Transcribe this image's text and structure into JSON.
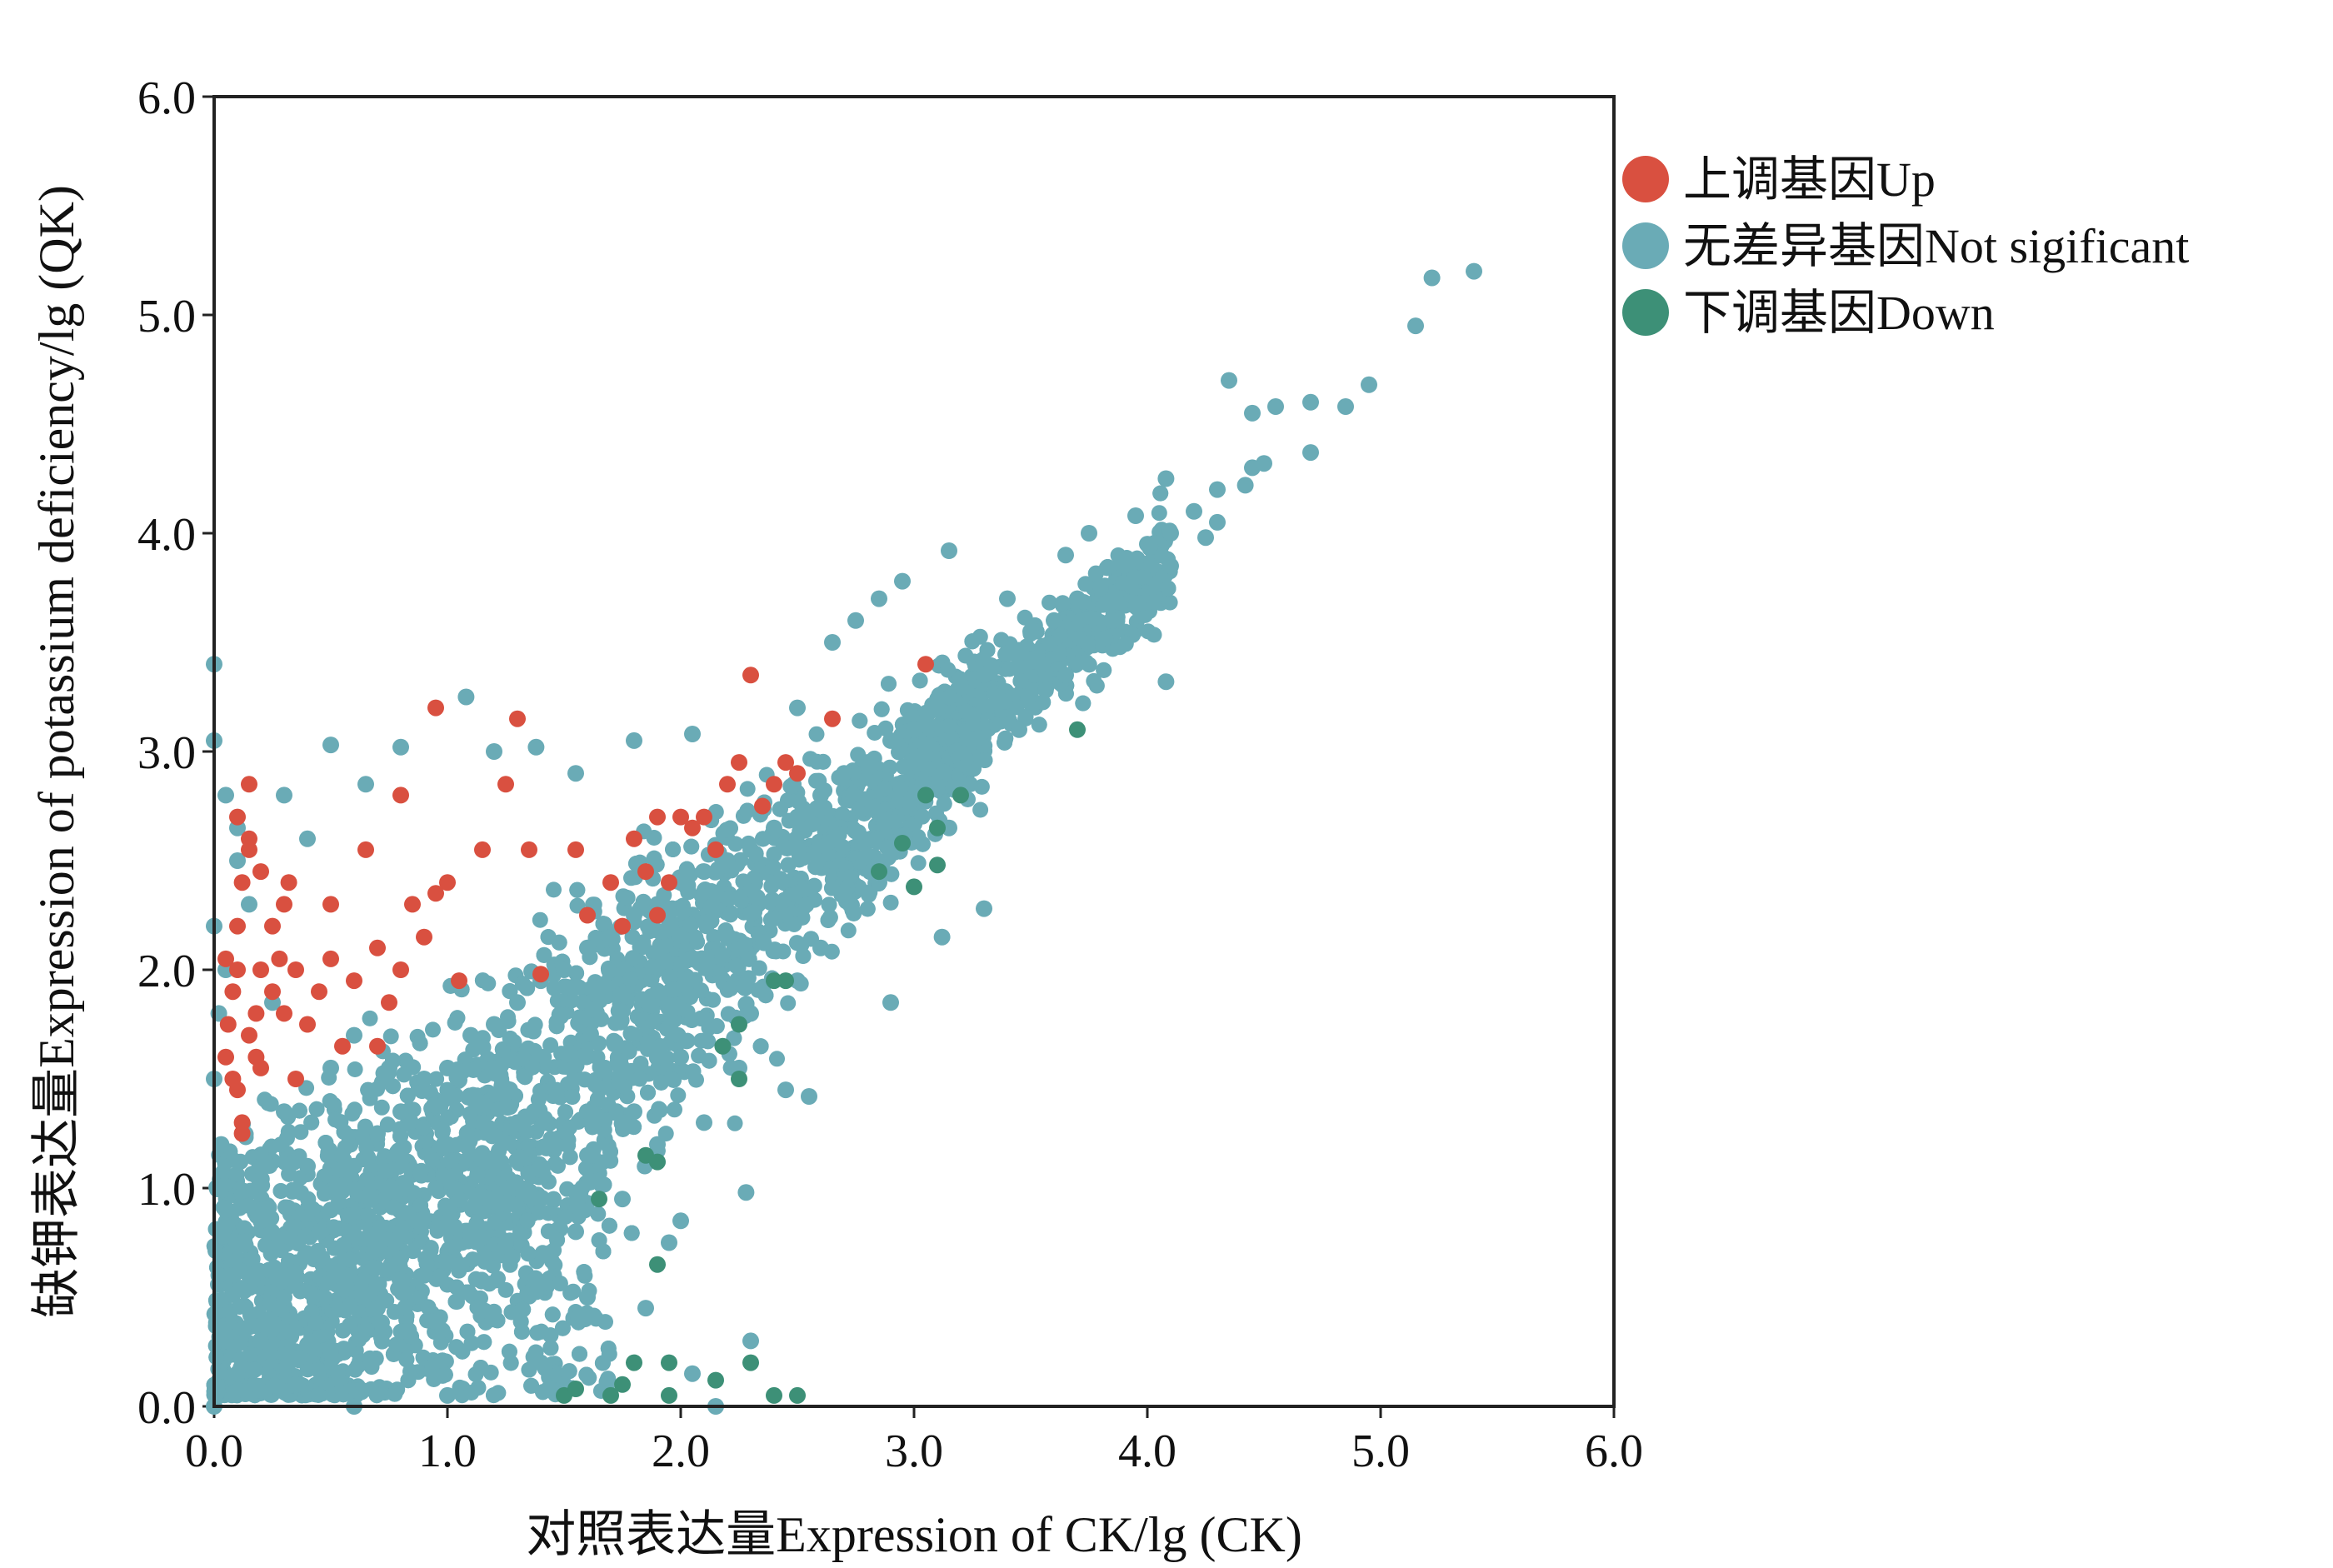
{
  "chart_data": {
    "type": "scatter",
    "xlabel": "对照表达量Expression of CK/lg (CK)",
    "ylabel": "缺钾表达量Expression of potassium deficiency/lg (QK)",
    "xlim": [
      0,
      6
    ],
    "ylim": [
      0,
      6
    ],
    "xticks": [
      "0.0",
      "1.0",
      "2.0",
      "3.0",
      "4.0",
      "5.0",
      "6.0"
    ],
    "yticks": [
      "0.0",
      "1.0",
      "2.0",
      "3.0",
      "4.0",
      "5.0",
      "6.0"
    ],
    "grid": false,
    "legend_placement": "right-top outside",
    "series": [
      {
        "name": "上调基因Up",
        "color": "#d95040",
        "points": [
          [
            0.05,
            1.6
          ],
          [
            0.06,
            1.75
          ],
          [
            0.08,
            1.9
          ],
          [
            0.1,
            2.0
          ],
          [
            0.1,
            1.45
          ],
          [
            0.12,
            1.3
          ],
          [
            0.08,
            1.5
          ],
          [
            0.1,
            2.2
          ],
          [
            0.12,
            2.4
          ],
          [
            0.15,
            2.6
          ],
          [
            0.15,
            1.7
          ],
          [
            0.18,
            1.8
          ],
          [
            0.2,
            2.0
          ],
          [
            0.12,
            1.25
          ],
          [
            0.15,
            2.85
          ],
          [
            0.1,
            2.7
          ],
          [
            0.2,
            2.45
          ],
          [
            0.25,
            2.2
          ],
          [
            0.3,
            2.3
          ],
          [
            0.25,
            1.9
          ],
          [
            0.3,
            1.8
          ],
          [
            0.35,
            2.0
          ],
          [
            0.4,
            1.75
          ],
          [
            0.35,
            1.5
          ],
          [
            0.45,
            1.9
          ],
          [
            0.5,
            2.05
          ],
          [
            0.55,
            1.65
          ],
          [
            0.6,
            1.95
          ],
          [
            0.5,
            2.3
          ],
          [
            0.65,
            2.55
          ],
          [
            0.7,
            2.1
          ],
          [
            0.7,
            1.65
          ],
          [
            0.75,
            1.85
          ],
          [
            0.8,
            2.0
          ],
          [
            0.85,
            2.3
          ],
          [
            0.8,
            2.8
          ],
          [
            0.95,
            3.2
          ],
          [
            0.95,
            2.35
          ],
          [
            1.0,
            2.4
          ],
          [
            0.9,
            2.15
          ],
          [
            1.05,
            1.95
          ],
          [
            1.15,
            2.55
          ],
          [
            1.25,
            2.85
          ],
          [
            1.3,
            3.15
          ],
          [
            1.35,
            2.55
          ],
          [
            1.4,
            1.98
          ],
          [
            1.55,
            2.55
          ],
          [
            1.6,
            2.25
          ],
          [
            1.7,
            2.4
          ],
          [
            1.75,
            2.2
          ],
          [
            1.8,
            2.6
          ],
          [
            1.85,
            2.45
          ],
          [
            1.9,
            2.7
          ],
          [
            1.9,
            2.25
          ],
          [
            1.95,
            2.4
          ],
          [
            2.0,
            2.7
          ],
          [
            2.05,
            2.65
          ],
          [
            2.1,
            2.7
          ],
          [
            2.15,
            2.55
          ],
          [
            2.2,
            2.85
          ],
          [
            2.25,
            2.95
          ],
          [
            2.3,
            3.35
          ],
          [
            2.35,
            2.75
          ],
          [
            2.4,
            2.85
          ],
          [
            2.45,
            2.95
          ],
          [
            2.5,
            2.9
          ],
          [
            2.65,
            3.15
          ],
          [
            3.05,
            3.4
          ],
          [
            0.15,
            2.55
          ],
          [
            0.2,
            1.55
          ],
          [
            0.28,
            2.05
          ],
          [
            0.32,
            2.4
          ],
          [
            0.05,
            2.05
          ],
          [
            0.18,
            1.6
          ]
        ]
      },
      {
        "name": "无差异基因Not sigificant",
        "color": "#6aabb6",
        "points": [
          [
            0.0,
            3.4
          ],
          [
            0.0,
            3.05
          ],
          [
            0.05,
            2.8
          ],
          [
            0.1,
            2.5
          ],
          [
            0.0,
            2.2
          ],
          [
            0.05,
            2.0
          ],
          [
            0.02,
            1.8
          ],
          [
            0.0,
            1.5
          ],
          [
            0.03,
            1.2
          ],
          [
            0.05,
            0.9
          ],
          [
            0.02,
            0.6
          ],
          [
            0.05,
            0.3
          ],
          [
            0.0,
            0.0
          ],
          [
            0.1,
            0.15
          ],
          [
            0.2,
            0.3
          ],
          [
            0.3,
            0.5
          ],
          [
            0.4,
            0.7
          ],
          [
            0.5,
            0.9
          ],
          [
            0.6,
            1.1
          ],
          [
            0.7,
            1.25
          ],
          [
            0.8,
            1.35
          ],
          [
            0.9,
            1.5
          ],
          [
            1.0,
            1.55
          ],
          [
            1.1,
            1.7
          ],
          [
            1.2,
            1.75
          ],
          [
            1.3,
            1.85
          ],
          [
            1.4,
            1.95
          ],
          [
            1.5,
            2.0
          ],
          [
            1.6,
            2.1
          ],
          [
            1.7,
            2.15
          ],
          [
            1.8,
            2.25
          ],
          [
            1.9,
            2.3
          ],
          [
            2.0,
            2.4
          ],
          [
            2.1,
            2.45
          ],
          [
            2.2,
            2.5
          ],
          [
            2.3,
            2.55
          ],
          [
            2.4,
            2.65
          ],
          [
            2.5,
            2.7
          ],
          [
            2.6,
            2.8
          ],
          [
            2.7,
            2.9
          ],
          [
            2.8,
            2.95
          ],
          [
            2.9,
            3.05
          ],
          [
            3.0,
            3.1
          ],
          [
            3.1,
            3.2
          ],
          [
            3.2,
            3.3
          ],
          [
            3.3,
            3.35
          ],
          [
            3.4,
            3.45
          ],
          [
            3.5,
            3.55
          ],
          [
            3.6,
            3.6
          ],
          [
            3.7,
            3.7
          ],
          [
            3.8,
            3.75
          ],
          [
            3.9,
            3.85
          ],
          [
            4.0,
            3.95
          ],
          [
            4.1,
            4.0
          ],
          [
            4.2,
            4.1
          ],
          [
            4.3,
            4.2
          ],
          [
            4.35,
            4.7
          ],
          [
            4.45,
            4.55
          ],
          [
            4.55,
            4.58
          ],
          [
            4.7,
            4.6
          ],
          [
            4.85,
            4.58
          ],
          [
            4.95,
            4.68
          ],
          [
            4.7,
            4.37
          ],
          [
            4.45,
            4.3
          ],
          [
            4.42,
            4.22
          ],
          [
            5.15,
            4.95
          ],
          [
            5.22,
            5.17
          ],
          [
            5.4,
            5.2
          ],
          [
            4.08,
            3.32
          ],
          [
            3.12,
            2.15
          ],
          [
            3.3,
            2.28
          ],
          [
            2.9,
            1.85
          ],
          [
            2.6,
            2.1
          ],
          [
            2.45,
            1.45
          ],
          [
            2.55,
            1.42
          ],
          [
            2.25,
            1.55
          ],
          [
            2.28,
            0.98
          ],
          [
            2.0,
            0.85
          ],
          [
            1.95,
            0.75
          ],
          [
            2.3,
            0.3
          ],
          [
            2.15,
            0.0
          ],
          [
            2.05,
            0.15
          ],
          [
            1.85,
            0.45
          ],
          [
            1.6,
            0.5
          ],
          [
            1.4,
            0.2
          ],
          [
            1.2,
            0.4
          ],
          [
            1.1,
            0.8
          ],
          [
            0.9,
            0.6
          ],
          [
            0.7,
            0.45
          ],
          [
            0.5,
            0.25
          ],
          [
            0.35,
            0.1
          ],
          [
            0.6,
            0.0
          ],
          [
            1.0,
            0.05
          ],
          [
            1.5,
            0.1
          ],
          [
            0.2,
            0.85
          ],
          [
            0.4,
            1.1
          ],
          [
            0.3,
            1.35
          ],
          [
            0.5,
            1.55
          ],
          [
            0.6,
            1.7
          ],
          [
            0.4,
            2.6
          ],
          [
            0.5,
            3.03
          ],
          [
            0.65,
            2.85
          ],
          [
            0.8,
            3.02
          ],
          [
            1.08,
            3.25
          ],
          [
            1.2,
            3.0
          ],
          [
            1.38,
            3.02
          ],
          [
            1.55,
            2.9
          ],
          [
            1.8,
            3.05
          ],
          [
            2.05,
            3.08
          ],
          [
            2.5,
            3.2
          ],
          [
            2.65,
            3.5
          ],
          [
            2.75,
            3.6
          ],
          [
            2.85,
            3.7
          ],
          [
            2.95,
            3.78
          ],
          [
            3.15,
            3.92
          ],
          [
            3.4,
            3.7
          ],
          [
            3.65,
            3.9
          ],
          [
            3.75,
            4.0
          ],
          [
            3.95,
            4.08
          ],
          [
            4.08,
            4.25
          ],
          [
            4.3,
            4.05
          ],
          [
            3.65,
            3.35
          ],
          [
            3.15,
            2.65
          ],
          [
            2.85,
            2.4
          ],
          [
            2.7,
            2.35
          ],
          [
            2.5,
            1.95
          ],
          [
            2.3,
            1.8
          ],
          [
            2.0,
            1.6
          ],
          [
            1.8,
            1.35
          ],
          [
            1.6,
            1.15
          ],
          [
            1.4,
            0.95
          ],
          [
            1.25,
            0.75
          ],
          [
            0.95,
            1.0
          ],
          [
            0.8,
            0.8
          ],
          [
            1.55,
            0.8
          ],
          [
            1.75,
            0.95
          ],
          [
            1.9,
            1.2
          ],
          [
            2.1,
            1.3
          ],
          [
            1.3,
            1.3
          ],
          [
            1.0,
            1.2
          ],
          [
            0.75,
            1.55
          ],
          [
            0.25,
            1.85
          ],
          [
            0.15,
            2.3
          ],
          [
            0.3,
            2.8
          ],
          [
            0.1,
            2.65
          ],
          [
            3.45,
            3.1
          ],
          [
            3.55,
            3.4
          ],
          [
            3.85,
            3.6
          ],
          [
            4.1,
            3.85
          ],
          [
            4.25,
            3.98
          ],
          [
            4.5,
            4.32
          ]
        ]
      },
      {
        "name": "下调基因Down",
        "color": "#3d9077",
        "points": [
          [
            3.7,
            3.1
          ],
          [
            3.05,
            2.8
          ],
          [
            3.1,
            2.65
          ],
          [
            2.85,
            2.45
          ],
          [
            3.1,
            2.48
          ],
          [
            2.95,
            2.58
          ],
          [
            2.4,
            1.95
          ],
          [
            2.25,
            1.75
          ],
          [
            2.25,
            1.5
          ],
          [
            2.18,
            1.65
          ],
          [
            1.85,
            1.15
          ],
          [
            1.9,
            1.12
          ],
          [
            1.65,
            0.95
          ],
          [
            1.9,
            0.65
          ],
          [
            2.3,
            0.2
          ],
          [
            2.4,
            0.05
          ],
          [
            2.5,
            0.05
          ],
          [
            1.8,
            0.2
          ],
          [
            1.75,
            0.1
          ],
          [
            1.7,
            0.05
          ],
          [
            1.5,
            0.05
          ],
          [
            1.55,
            0.08
          ],
          [
            1.95,
            0.05
          ],
          [
            2.15,
            0.12
          ],
          [
            1.95,
            0.2
          ],
          [
            2.45,
            1.95
          ],
          [
            3.0,
            2.38
          ],
          [
            3.2,
            2.8
          ]
        ]
      }
    ]
  }
}
